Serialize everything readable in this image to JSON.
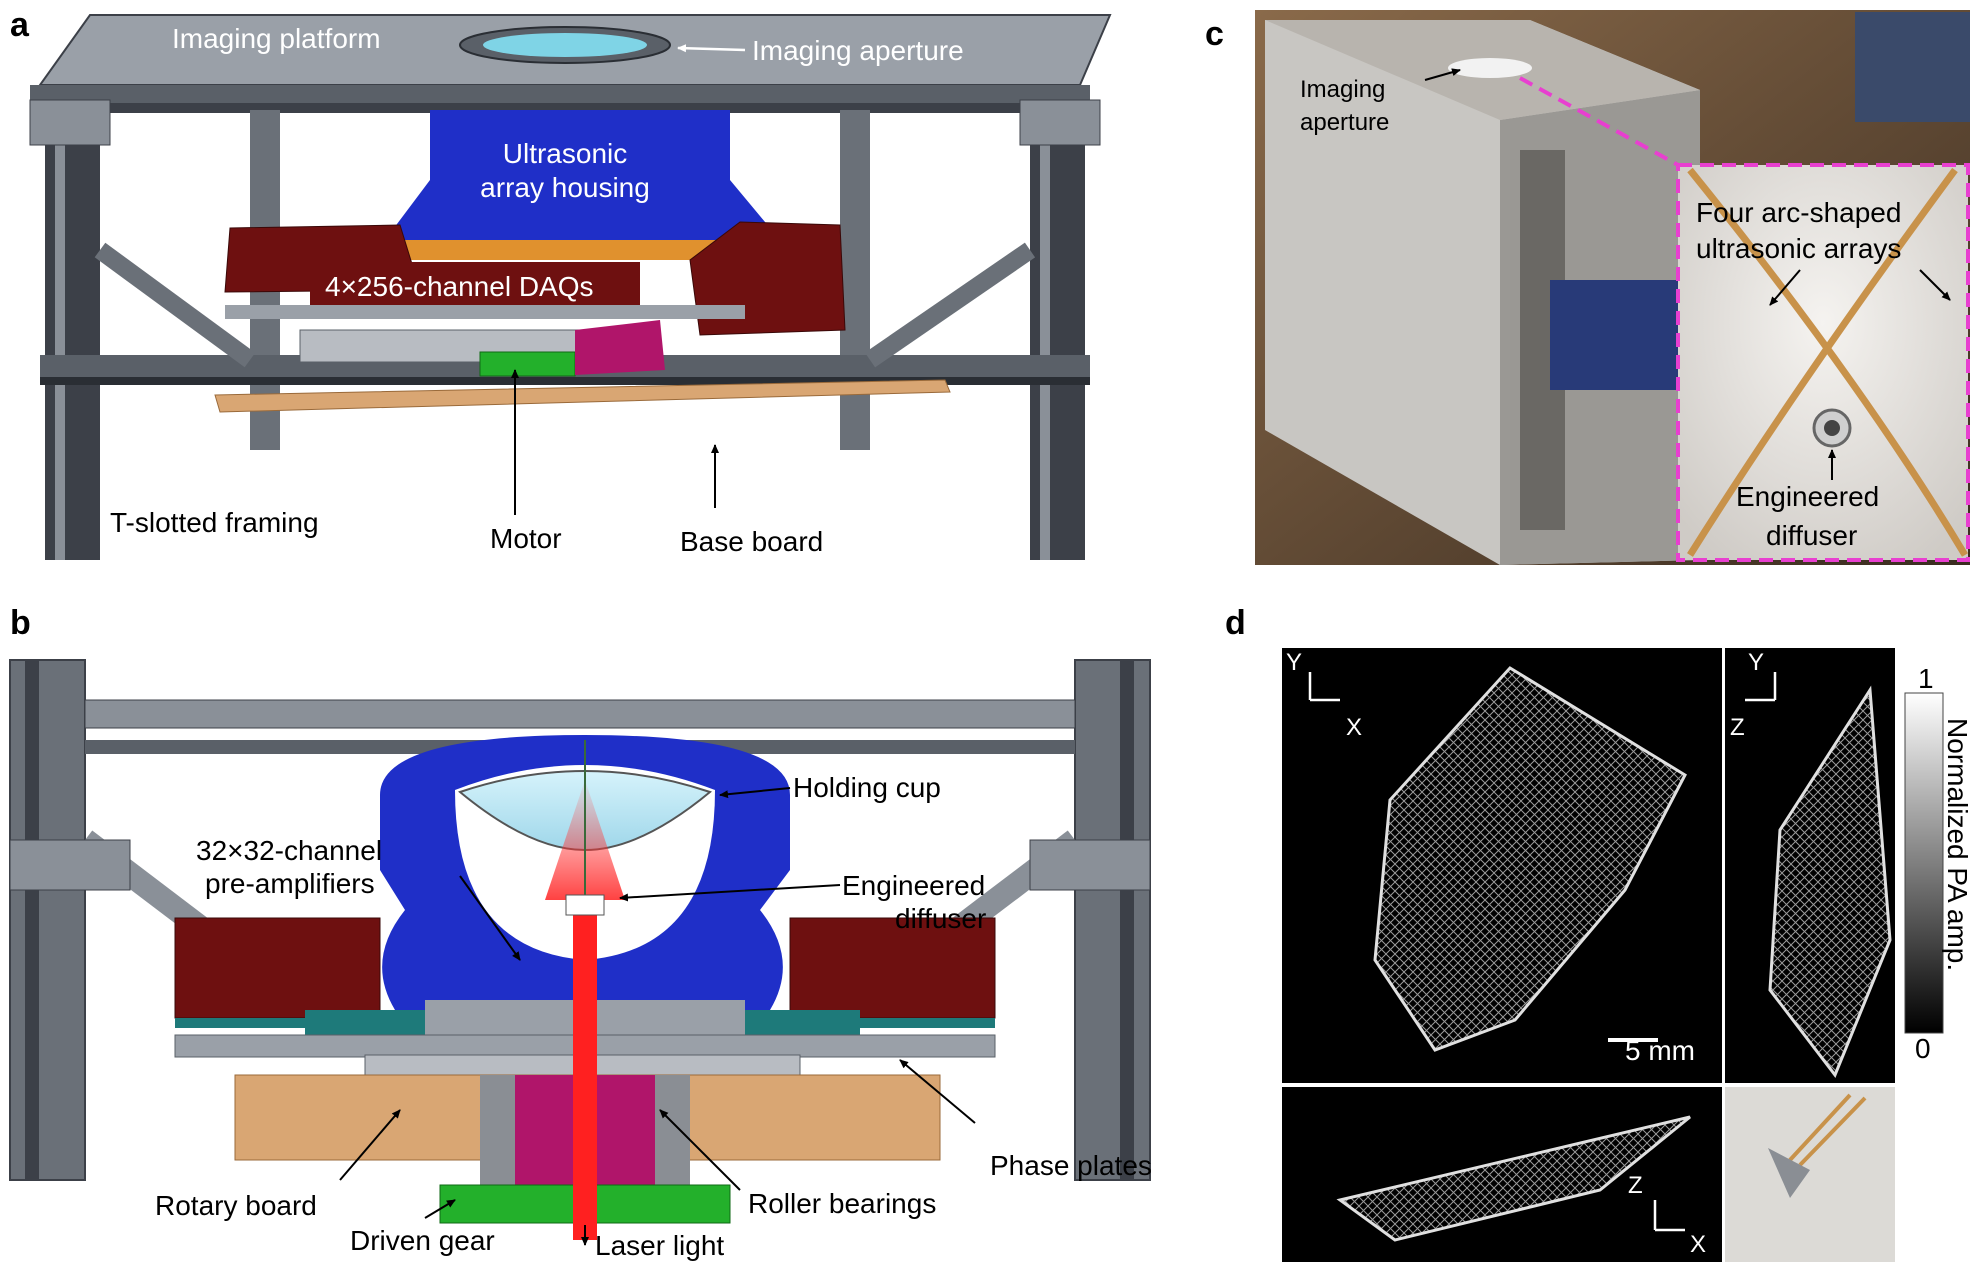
{
  "panels": {
    "a": {
      "letter": "a",
      "labels": {
        "imaging_platform": "Imaging platform",
        "imaging_aperture": "Imaging aperture",
        "array_housing_line1": "Ultrasonic",
        "array_housing_line2": "array housing",
        "daqs": "4×256-channel DAQs",
        "t_slotted": "T-slotted framing",
        "motor": "Motor",
        "base_board": "Base board"
      }
    },
    "b": {
      "letter": "b",
      "labels": {
        "holding_cup": "Holding cup",
        "preamps_line1": "32×32-channel",
        "preamps_line2": "pre-amplifiers",
        "diffuser_line1": "Engineered",
        "diffuser_line2": "diffuser",
        "phase_plates": "Phase plates",
        "rotary_board": "Rotary board",
        "roller_bearings": "Roller bearings",
        "driven_gear": "Driven gear",
        "laser_light": "Laser light"
      }
    },
    "c": {
      "letter": "c",
      "labels": {
        "aperture_line1": "Imaging",
        "aperture_line2": "aperture",
        "arrays_line1": "Four arc-shaped",
        "arrays_line2": "ultrasonic arrays",
        "diffuser_line1": "Engineered",
        "diffuser_line2": "diffuser"
      }
    },
    "d": {
      "letter": "d",
      "axes": {
        "y": "Y",
        "x": "X",
        "z": "Z"
      },
      "scale_bar": "5 mm",
      "colorbar": {
        "label": "Normalized PA amp.",
        "max": "1",
        "min": "0"
      }
    }
  },
  "colors": {
    "frame": "#3c4048",
    "frame_light": "#8a9098",
    "housing_blue": "#1f2fc8",
    "daq_red": "#6e1010",
    "preamp_teal": "#1e7a7a",
    "orange": "#e0912e",
    "base_tan": "#d9a673",
    "motor_green": "#23b02b",
    "magenta": "#b0156a",
    "laser": "#ff2020",
    "inset_border": "#e83fd0"
  }
}
